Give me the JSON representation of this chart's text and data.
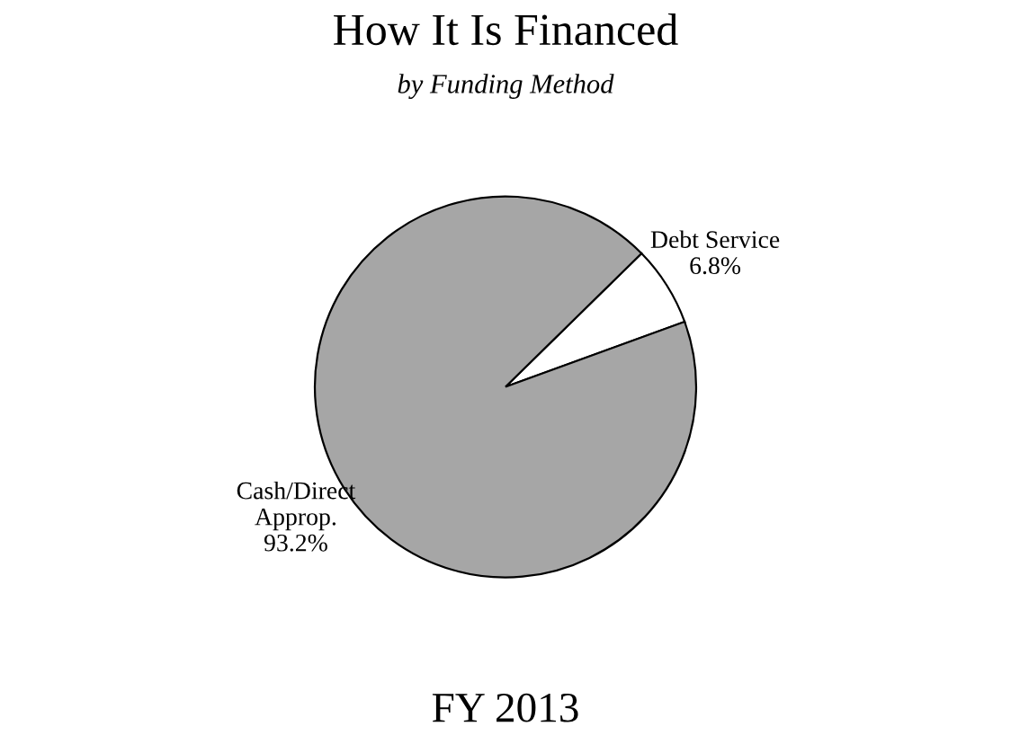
{
  "chart_data": {
    "type": "pie",
    "title": "How It Is Financed",
    "subtitle": "by Funding Method",
    "categories": [
      "Debt Service",
      "Cash/Direct\nApprop."
    ],
    "values": [
      6.8,
      93.2
    ],
    "colors": [
      "#ffffff",
      "#a6a6a6"
    ],
    "value_labels": [
      "6.8%",
      "93.2%"
    ],
    "annotations": [
      "FY 2013"
    ]
  }
}
